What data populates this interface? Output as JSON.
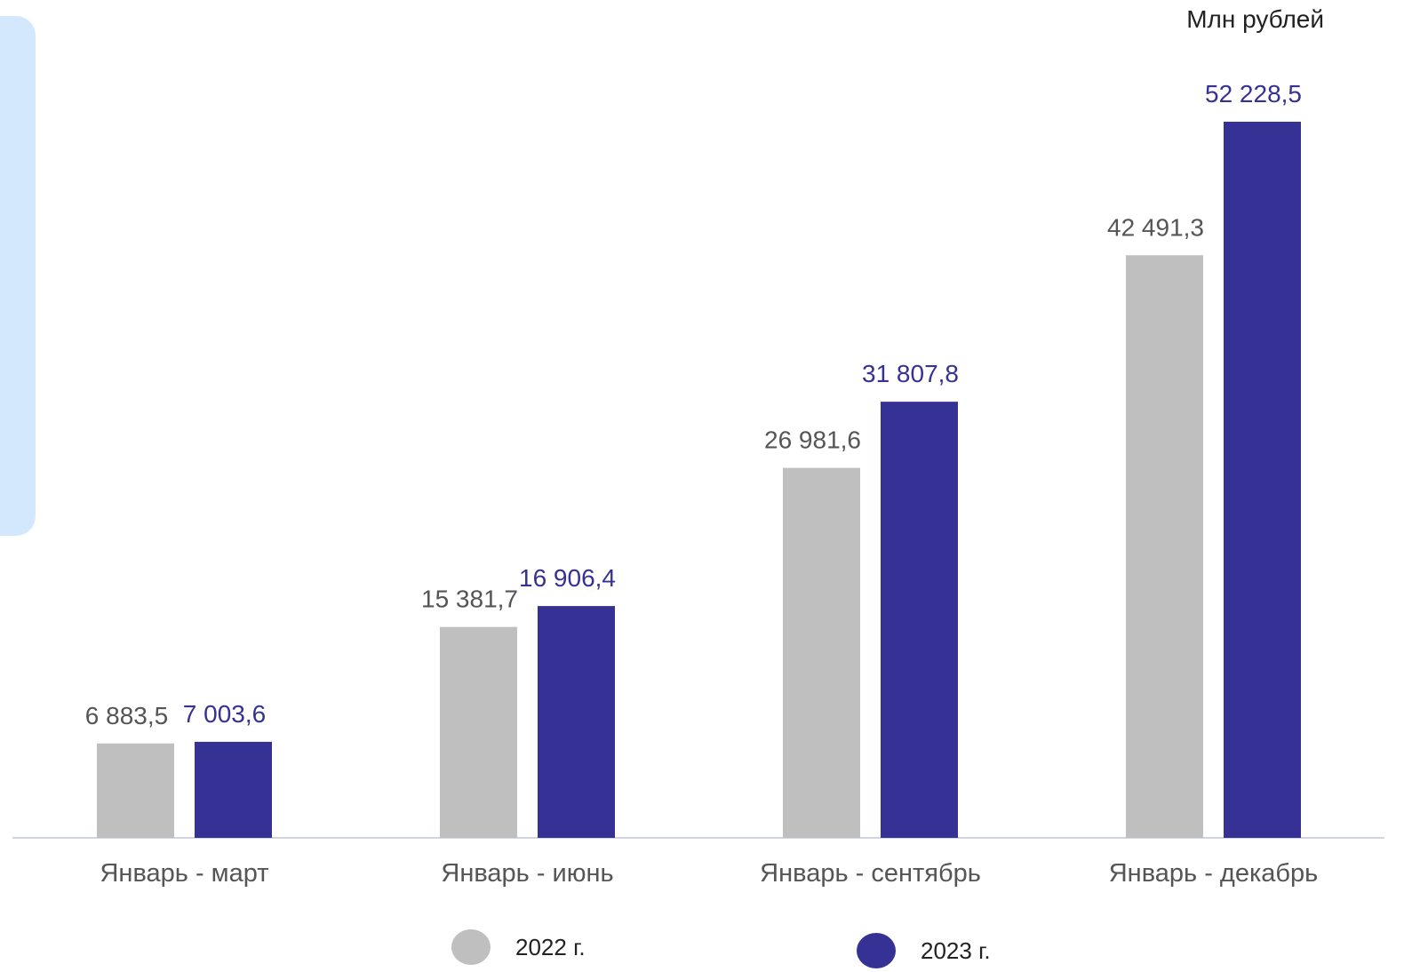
{
  "unit_label": "Млн рублей",
  "colors": {
    "series_2022": "#bfbfbf",
    "series_2023": "#363195",
    "label_2022": "#555555",
    "label_2023": "#363195",
    "axis": "#d0d4dc",
    "category_text": "#555555"
  },
  "legend": [
    {
      "label": "2022 г.",
      "color": "#bfbfbf"
    },
    {
      "label": "2023 г.",
      "color": "#363195"
    }
  ],
  "chart_data": {
    "type": "bar",
    "title": "",
    "xlabel": "",
    "ylabel": "Млн рублей",
    "categories": [
      "Январь - март",
      "Январь - июнь",
      "Январь - сентябрь",
      "Январь - декабрь"
    ],
    "series": [
      {
        "name": "2022 г.",
        "values": [
          6883.5,
          15381.7,
          26981.6,
          42491.3
        ],
        "labels": [
          "6 883,5",
          "15 381,7",
          "26 981,6",
          "42 491,3"
        ]
      },
      {
        "name": "2023 г.",
        "values": [
          7003.6,
          16906.4,
          31807.8,
          52228.5
        ],
        "labels": [
          "7 003,6",
          "16 906,4",
          "31 807,8",
          "52 228,5"
        ]
      }
    ],
    "ylim": [
      0,
      57000
    ],
    "grid": false,
    "legend_position": "bottom"
  }
}
